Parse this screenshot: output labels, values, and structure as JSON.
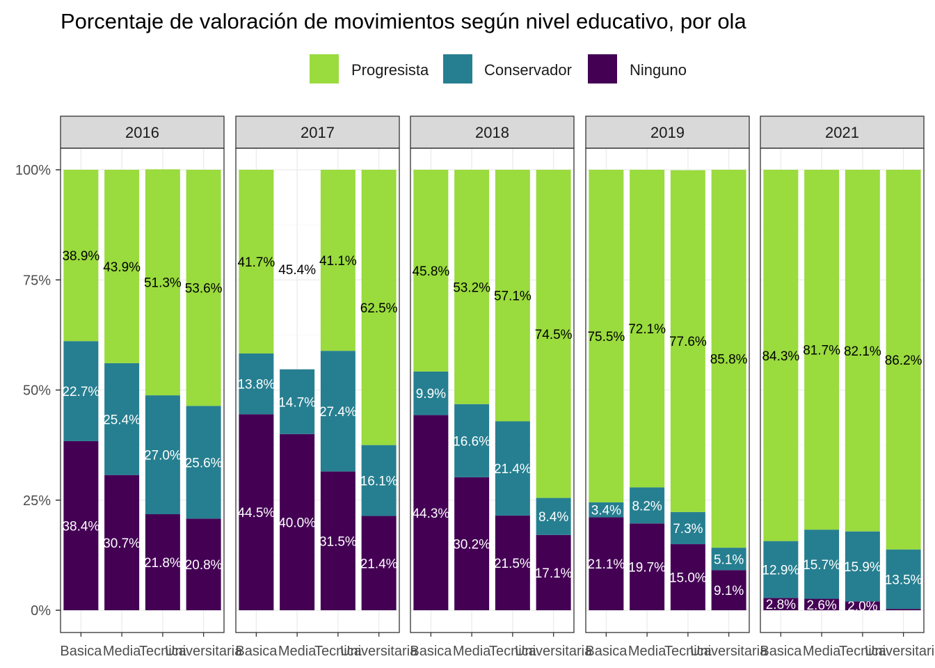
{
  "chart_data": {
    "type": "bar",
    "stacked": true,
    "title": "Porcentaje de valoración de movimientos según nivel educativo, por ola",
    "legend": {
      "position": "top",
      "entries": [
        {
          "name": "Progresista",
          "color": "#9ADB3E"
        },
        {
          "name": "Conservador",
          "color": "#267F90"
        },
        {
          "name": "Ninguno",
          "color": "#440154"
        }
      ]
    },
    "y_ticks": [
      "0%",
      "25%",
      "50%",
      "75%",
      "100%"
    ],
    "ylim": [
      0,
      100
    ],
    "grid": true,
    "categories": [
      "Basica",
      "Media",
      "Tecnica",
      "Universitaria"
    ],
    "panels": [
      {
        "label": "2016",
        "series": [
          {
            "name": "Ninguno",
            "values": [
              38.4,
              30.7,
              21.8,
              20.8
            ],
            "labels": [
              "38.4%",
              "30.7%",
              "21.8%",
              "20.8%"
            ]
          },
          {
            "name": "Conservador",
            "values": [
              22.7,
              25.4,
              27.0,
              25.6
            ],
            "labels": [
              "22.7%",
              "25.4%",
              "27.0%",
              "25.6%"
            ]
          },
          {
            "name": "Progresista",
            "values": [
              38.9,
              43.9,
              51.3,
              53.6
            ],
            "labels": [
              "38.9%",
              "43.9%",
              "51.3%",
              "53.6%"
            ]
          }
        ]
      },
      {
        "label": "2017",
        "series": [
          {
            "name": "Ninguno",
            "values": [
              44.5,
              40.0,
              31.5,
              21.4
            ],
            "labels": [
              "44.5%",
              "40.0%",
              "31.5%",
              "21.4%"
            ]
          },
          {
            "name": "Conservador",
            "values": [
              13.8,
              14.7,
              27.4,
              16.1
            ],
            "labels": [
              "13.8%",
              "14.7%",
              "27.4%",
              "16.1%"
            ]
          },
          {
            "name": "Progresista",
            "values": [
              41.7,
              45.4,
              41.1,
              62.5
            ],
            "labels": [
              "41.7%",
              "45.4%",
              "41.1%",
              "62.5%"
            ],
            "hidden": [
              false,
              true,
              false,
              false
            ]
          }
        ]
      },
      {
        "label": "2018",
        "series": [
          {
            "name": "Ninguno",
            "values": [
              44.3,
              30.2,
              21.5,
              17.1
            ],
            "labels": [
              "44.3%",
              "30.2%",
              "21.5%",
              "17.1%"
            ]
          },
          {
            "name": "Conservador",
            "values": [
              9.9,
              16.6,
              21.4,
              8.4
            ],
            "labels": [
              "9.9%",
              "16.6%",
              "21.4%",
              "8.4%"
            ]
          },
          {
            "name": "Progresista",
            "values": [
              45.8,
              53.2,
              57.1,
              74.5
            ],
            "labels": [
              "45.8%",
              "53.2%",
              "57.1%",
              "74.5%"
            ]
          }
        ]
      },
      {
        "label": "2019",
        "series": [
          {
            "name": "Ninguno",
            "values": [
              21.1,
              19.7,
              15.0,
              9.1
            ],
            "labels": [
              "21.1%",
              "19.7%",
              "15.0%",
              "9.1%"
            ]
          },
          {
            "name": "Conservador",
            "values": [
              3.4,
              8.2,
              7.3,
              5.1
            ],
            "labels": [
              "3.4%",
              "8.2%",
              "7.3%",
              "5.1%"
            ]
          },
          {
            "name": "Progresista",
            "values": [
              75.5,
              72.1,
              77.6,
              85.8
            ],
            "labels": [
              "75.5%",
              "72.1%",
              "77.6%",
              "85.8%"
            ]
          }
        ]
      },
      {
        "label": "2021",
        "series": [
          {
            "name": "Ninguno",
            "values": [
              2.8,
              2.6,
              2.0,
              0.3
            ],
            "labels": [
              "2.8%",
              "2.6%",
              "2.0%",
              ""
            ]
          },
          {
            "name": "Conservador",
            "values": [
              12.9,
              15.7,
              15.9,
              13.5
            ],
            "labels": [
              "12.9%",
              "15.7%",
              "15.9%",
              "13.5%"
            ]
          },
          {
            "name": "Progresista",
            "values": [
              84.3,
              81.7,
              82.1,
              86.2
            ],
            "labels": [
              "84.3%",
              "81.7%",
              "82.1%",
              "86.2%"
            ]
          }
        ]
      }
    ]
  }
}
